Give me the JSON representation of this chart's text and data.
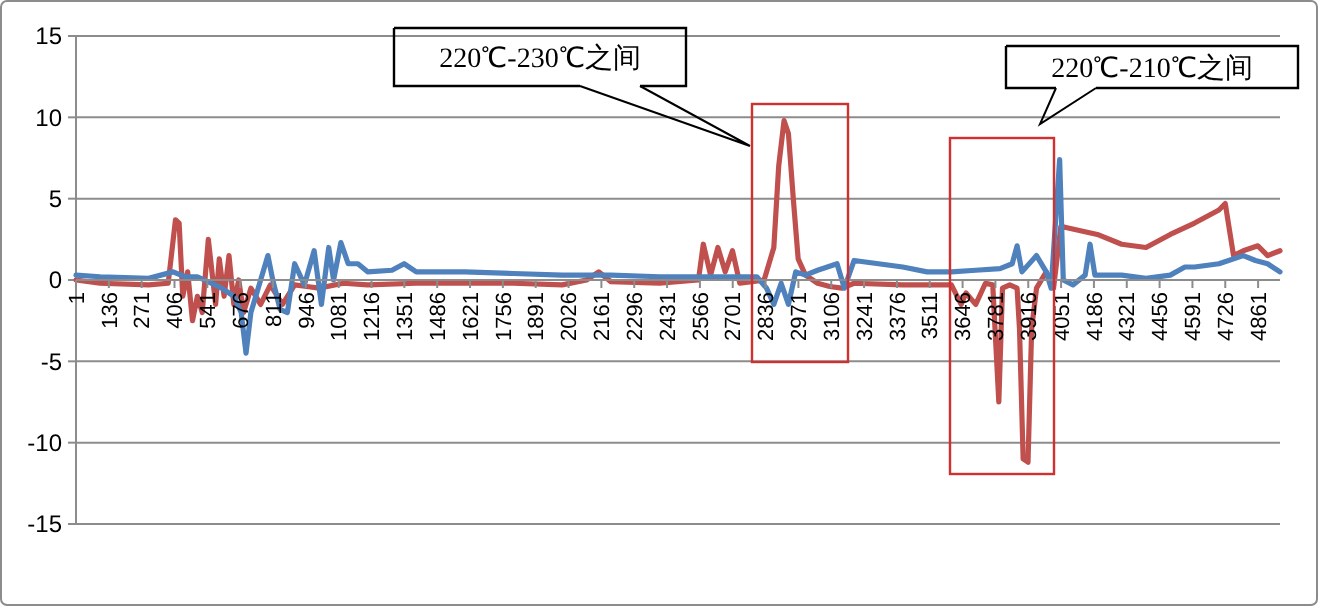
{
  "chart_data": {
    "type": "line",
    "xlim": [
      1,
      4951
    ],
    "ylim": [
      -15,
      15
    ],
    "yticks": [
      -15,
      -10,
      -5,
      0,
      5,
      10,
      15
    ],
    "xticks": [
      1,
      136,
      271,
      406,
      541,
      676,
      811,
      946,
      1081,
      1216,
      1351,
      1486,
      1621,
      1756,
      1891,
      2026,
      2161,
      2296,
      2431,
      2566,
      2701,
      2836,
      2971,
      3106,
      3241,
      3376,
      3511,
      3646,
      3781,
      3916,
      4051,
      4186,
      4321,
      4456,
      4591,
      4726,
      4861
    ],
    "grid": "y",
    "line_style": "solid",
    "series": [
      {
        "color": "#c0504d",
        "x": [
          1,
          100,
          300,
          380,
          410,
          425,
          440,
          460,
          480,
          500,
          520,
          545,
          560,
          575,
          590,
          610,
          630,
          650,
          670,
          690,
          720,
          760,
          800,
          850,
          900,
          950,
          1000,
          1100,
          1200,
          1400,
          1600,
          1800,
          2000,
          2100,
          2150,
          2200,
          2400,
          2560,
          2580,
          2610,
          2640,
          2670,
          2700,
          2730,
          2830,
          2870,
          2890,
          2912,
          2930,
          2950,
          2970,
          3000,
          3050,
          3100,
          3150,
          3200,
          3400,
          3600,
          3640,
          3660,
          3700,
          3740,
          3770,
          3795,
          3810,
          3840,
          3870,
          3880,
          3895,
          3915,
          3930,
          3950,
          3990,
          4020,
          4050,
          4080,
          4200,
          4300,
          4400,
          4500,
          4600,
          4700,
          4726,
          4760,
          4800,
          4860,
          4900,
          4951
        ],
        "values": [
          0,
          -0.2,
          -0.3,
          -0.2,
          3.7,
          3.5,
          -1,
          0.5,
          -2.5,
          -1,
          -2,
          2.5,
          0.5,
          -1.5,
          1.3,
          -1,
          1.5,
          -1.5,
          0,
          -2,
          -0.5,
          -1.5,
          -0.3,
          -1.5,
          -0.3,
          -0.4,
          -0.5,
          -0.2,
          -0.3,
          -0.2,
          -0.2,
          -0.2,
          -0.3,
          0,
          0.5,
          -0.1,
          -0.2,
          0,
          2.2,
          0.3,
          2,
          0.5,
          1.8,
          -0.2,
          0,
          2,
          7,
          9.8,
          9,
          5,
          1.3,
          0.3,
          -0.2,
          -0.4,
          -0.5,
          -0.2,
          -0.3,
          -0.3,
          -1.5,
          -0.8,
          -1.5,
          -0.2,
          -0.3,
          -7.5,
          -0.5,
          -0.3,
          -0.5,
          -3,
          -11,
          -11.2,
          -3,
          -0.5,
          0.5,
          -0.5,
          3.3,
          3.2,
          2.8,
          2.2,
          2,
          2.8,
          3.5,
          4.3,
          4.7,
          1.5,
          1.8,
          2.1,
          1.5,
          1.8
        ]
      },
      {
        "color": "#4f81bd",
        "x": [
          1,
          100,
          300,
          400,
          450,
          500,
          600,
          650,
          680,
          700,
          720,
          750,
          790,
          810,
          840,
          870,
          900,
          940,
          980,
          1010,
          1040,
          1060,
          1090,
          1120,
          1160,
          1200,
          1300,
          1350,
          1400,
          1600,
          1800,
          2000,
          2200,
          2400,
          2600,
          2800,
          2840,
          2870,
          2900,
          2930,
          2960,
          3000,
          3050,
          3130,
          3160,
          3200,
          3300,
          3400,
          3500,
          3600,
          3700,
          3800,
          3850,
          3870,
          3890,
          3950,
          3990,
          4010,
          4045,
          4060,
          4100,
          4150,
          4170,
          4190,
          4300,
          4400,
          4500,
          4560,
          4600,
          4700,
          4800,
          4850,
          4900,
          4951
        ],
        "values": [
          0.3,
          0.2,
          0.1,
          0.5,
          0.2,
          0.2,
          -0.5,
          -1,
          -2,
          -4.5,
          -2,
          -0.5,
          1.5,
          0,
          -1.8,
          -2,
          1,
          -0.3,
          1.8,
          -1.5,
          2,
          0,
          2.3,
          1,
          1,
          0.5,
          0.6,
          1,
          0.5,
          0.5,
          0.4,
          0.3,
          0.3,
          0.2,
          0.2,
          0.2,
          -0.5,
          -1.5,
          -0.2,
          -1.5,
          0.5,
          0.3,
          0.6,
          1,
          -0.5,
          1.2,
          1,
          0.8,
          0.5,
          0.5,
          0.6,
          0.7,
          1,
          2.1,
          0.5,
          1.5,
          0.5,
          -0.5,
          7.4,
          0,
          -0.3,
          0.3,
          2.2,
          0.3,
          0.3,
          0.1,
          0.3,
          0.8,
          0.8,
          1,
          1.5,
          1.2,
          1,
          0.5
        ]
      }
    ],
    "annotations": [
      "220℃-230℃之间",
      "220℃-210℃之间"
    ]
  }
}
